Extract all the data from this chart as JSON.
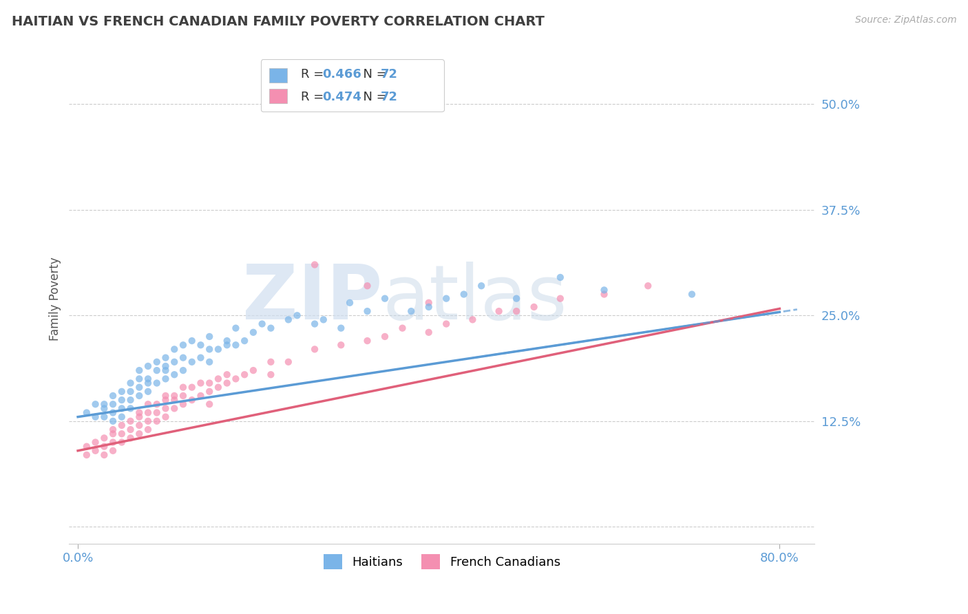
{
  "title": "HAITIAN VS FRENCH CANADIAN FAMILY POVERTY CORRELATION CHART",
  "source_text": "Source: ZipAtlas.com",
  "ylabel": "Family Poverty",
  "x_ticks": [
    0.0,
    0.8
  ],
  "x_tick_labels": [
    "0.0%",
    "80.0%"
  ],
  "y_ticks": [
    0.0,
    0.125,
    0.25,
    0.375,
    0.5
  ],
  "y_tick_labels": [
    "",
    "12.5%",
    "25.0%",
    "37.5%",
    "50.0%"
  ],
  "xlim": [
    -0.01,
    0.84
  ],
  "ylim": [
    -0.02,
    0.56
  ],
  "blue_color": "#7ab4e8",
  "pink_color": "#f48fb1",
  "trend_blue_color": "#5b9bd5",
  "trend_pink_color": "#e0607a",
  "legend_R_blue": "0.466",
  "legend_N_blue": "72",
  "legend_R_pink": "0.474",
  "legend_N_pink": "72",
  "legend_label_blue": "Haitians",
  "legend_label_pink": "French Canadians",
  "title_color": "#404040",
  "axis_color": "#5b9bd5",
  "grid_color": "#cccccc",
  "watermark_zip": "ZIP",
  "watermark_atlas": "atlas",
  "blue_intercept": 0.13,
  "blue_slope": 0.155,
  "pink_intercept": 0.09,
  "pink_slope": 0.21,
  "blue_scatter_x": [
    0.01,
    0.02,
    0.02,
    0.03,
    0.03,
    0.03,
    0.04,
    0.04,
    0.04,
    0.04,
    0.05,
    0.05,
    0.05,
    0.05,
    0.06,
    0.06,
    0.06,
    0.06,
    0.07,
    0.07,
    0.07,
    0.07,
    0.08,
    0.08,
    0.08,
    0.08,
    0.09,
    0.09,
    0.09,
    0.1,
    0.1,
    0.1,
    0.1,
    0.11,
    0.11,
    0.11,
    0.12,
    0.12,
    0.12,
    0.13,
    0.13,
    0.14,
    0.14,
    0.15,
    0.15,
    0.15,
    0.16,
    0.17,
    0.17,
    0.18,
    0.18,
    0.19,
    0.2,
    0.21,
    0.22,
    0.24,
    0.25,
    0.27,
    0.28,
    0.3,
    0.31,
    0.33,
    0.35,
    0.38,
    0.4,
    0.42,
    0.44,
    0.46,
    0.5,
    0.55,
    0.6,
    0.7
  ],
  "blue_scatter_y": [
    0.135,
    0.13,
    0.145,
    0.14,
    0.13,
    0.145,
    0.135,
    0.145,
    0.155,
    0.125,
    0.14,
    0.13,
    0.15,
    0.16,
    0.14,
    0.15,
    0.16,
    0.17,
    0.155,
    0.165,
    0.175,
    0.185,
    0.16,
    0.17,
    0.175,
    0.19,
    0.17,
    0.185,
    0.195,
    0.175,
    0.185,
    0.19,
    0.2,
    0.18,
    0.195,
    0.21,
    0.185,
    0.2,
    0.215,
    0.195,
    0.22,
    0.2,
    0.215,
    0.195,
    0.21,
    0.225,
    0.21,
    0.215,
    0.22,
    0.215,
    0.235,
    0.22,
    0.23,
    0.24,
    0.235,
    0.245,
    0.25,
    0.24,
    0.245,
    0.235,
    0.265,
    0.255,
    0.27,
    0.255,
    0.26,
    0.27,
    0.275,
    0.285,
    0.27,
    0.295,
    0.28,
    0.275
  ],
  "pink_scatter_x": [
    0.01,
    0.01,
    0.02,
    0.02,
    0.03,
    0.03,
    0.03,
    0.04,
    0.04,
    0.04,
    0.04,
    0.05,
    0.05,
    0.05,
    0.06,
    0.06,
    0.06,
    0.07,
    0.07,
    0.07,
    0.07,
    0.08,
    0.08,
    0.08,
    0.08,
    0.09,
    0.09,
    0.09,
    0.1,
    0.1,
    0.1,
    0.1,
    0.11,
    0.11,
    0.11,
    0.12,
    0.12,
    0.12,
    0.13,
    0.13,
    0.14,
    0.14,
    0.15,
    0.15,
    0.16,
    0.16,
    0.17,
    0.17,
    0.18,
    0.19,
    0.2,
    0.22,
    0.24,
    0.27,
    0.3,
    0.33,
    0.35,
    0.37,
    0.4,
    0.42,
    0.45,
    0.48,
    0.5,
    0.52,
    0.55,
    0.6,
    0.65,
    0.27,
    0.33,
    0.4,
    0.22,
    0.15
  ],
  "pink_scatter_y": [
    0.085,
    0.095,
    0.09,
    0.1,
    0.085,
    0.095,
    0.105,
    0.09,
    0.1,
    0.11,
    0.115,
    0.1,
    0.11,
    0.12,
    0.105,
    0.115,
    0.125,
    0.11,
    0.12,
    0.13,
    0.135,
    0.115,
    0.125,
    0.135,
    0.145,
    0.125,
    0.135,
    0.145,
    0.13,
    0.14,
    0.15,
    0.155,
    0.14,
    0.15,
    0.155,
    0.145,
    0.155,
    0.165,
    0.15,
    0.165,
    0.155,
    0.17,
    0.16,
    0.17,
    0.165,
    0.175,
    0.17,
    0.18,
    0.175,
    0.18,
    0.185,
    0.195,
    0.195,
    0.21,
    0.215,
    0.22,
    0.225,
    0.235,
    0.23,
    0.24,
    0.245,
    0.255,
    0.255,
    0.26,
    0.27,
    0.275,
    0.285,
    0.31,
    0.285,
    0.265,
    0.18,
    0.145
  ]
}
